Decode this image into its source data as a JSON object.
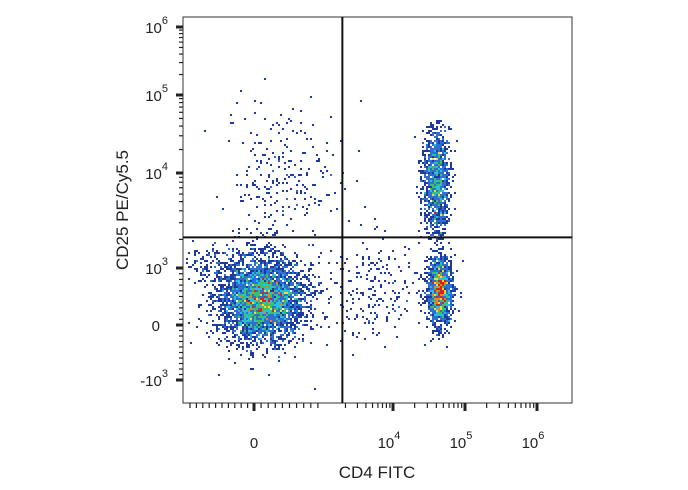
{
  "chart_data": {
    "type": "scatter",
    "subtype": "flow-cytometry pseudocolor density plot",
    "title": "",
    "xlabel": "CD4 FITC",
    "ylabel": "CD25 PE/Cy5.5",
    "x_scale": "biexponential",
    "y_scale": "biexponential",
    "x_ticks": [
      {
        "value": 0,
        "base": "0",
        "exp": ""
      },
      {
        "value": 10000,
        "base": "10",
        "exp": "4"
      },
      {
        "value": 100000,
        "base": "10",
        "exp": "5"
      },
      {
        "value": 1000000,
        "base": "10",
        "exp": "6"
      }
    ],
    "y_ticks": [
      {
        "value": -1000,
        "base": "-10",
        "exp": "3"
      },
      {
        "value": 0,
        "base": "0",
        "exp": ""
      },
      {
        "value": 1000,
        "base": "10",
        "exp": "3"
      },
      {
        "value": 10000,
        "base": "10",
        "exp": "4"
      },
      {
        "value": 100000,
        "base": "10",
        "exp": "5"
      },
      {
        "value": 1000000,
        "base": "10",
        "exp": "6"
      }
    ],
    "xlim": [
      -1000,
      1000000
    ],
    "ylim": [
      -1500,
      1500000
    ],
    "quadrant_gate": {
      "x": 1800,
      "y": 2100
    },
    "populations": [
      {
        "cd4": 100,
        "cd25": 450,
        "density": "high"
      },
      {
        "cd4": 45000,
        "cd25": 600,
        "density": "medium"
      },
      {
        "cd4": 40000,
        "cd25": 8000,
        "density": "low-medium"
      },
      {
        "cd4": 400,
        "cd25": 8000,
        "density": "sparse"
      }
    ],
    "color_scale": [
      "#1f3a9a",
      "#2f6fd0",
      "#29c0e0",
      "#3cc060",
      "#e8e030",
      "#f08020",
      "#e02020"
    ],
    "grid": false,
    "legend": "none"
  }
}
